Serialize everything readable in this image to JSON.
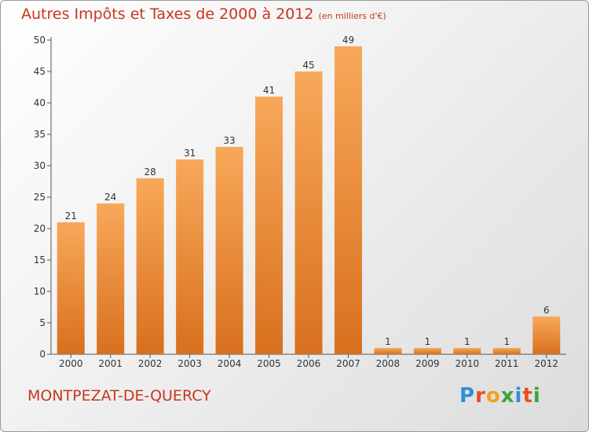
{
  "chart_data": {
    "type": "bar",
    "title": "Autres Impôts et Taxes de 2000 à 2012",
    "subtitle": "(en milliers d'€)",
    "categories": [
      "2000",
      "2001",
      "2002",
      "2003",
      "2004",
      "2005",
      "2006",
      "2007",
      "2008",
      "2009",
      "2010",
      "2011",
      "2012"
    ],
    "values": [
      21,
      24,
      28,
      31,
      33,
      41,
      45,
      49,
      1,
      1,
      1,
      1,
      6
    ],
    "ylim": [
      0,
      50
    ],
    "yticks": [
      0,
      5,
      10,
      15,
      20,
      25,
      30,
      35,
      40,
      45,
      50
    ],
    "grid": false,
    "bar_color_top": "#f8a85a",
    "bar_color_bottom": "#d8701e"
  },
  "footer": {
    "commune": "MONTPEZAT-DE-QUERCY"
  },
  "brand": {
    "letters": [
      "P",
      "r",
      "o",
      "x",
      "i",
      "t",
      "i"
    ],
    "colors": [
      "#2e8fd6",
      "#e8501e",
      "#f3a21c",
      "#3aa538",
      "#2e8fd6",
      "#e8501e",
      "#3aa538"
    ]
  },
  "colors": {
    "title": "#c8361e",
    "axis": "#555555"
  }
}
